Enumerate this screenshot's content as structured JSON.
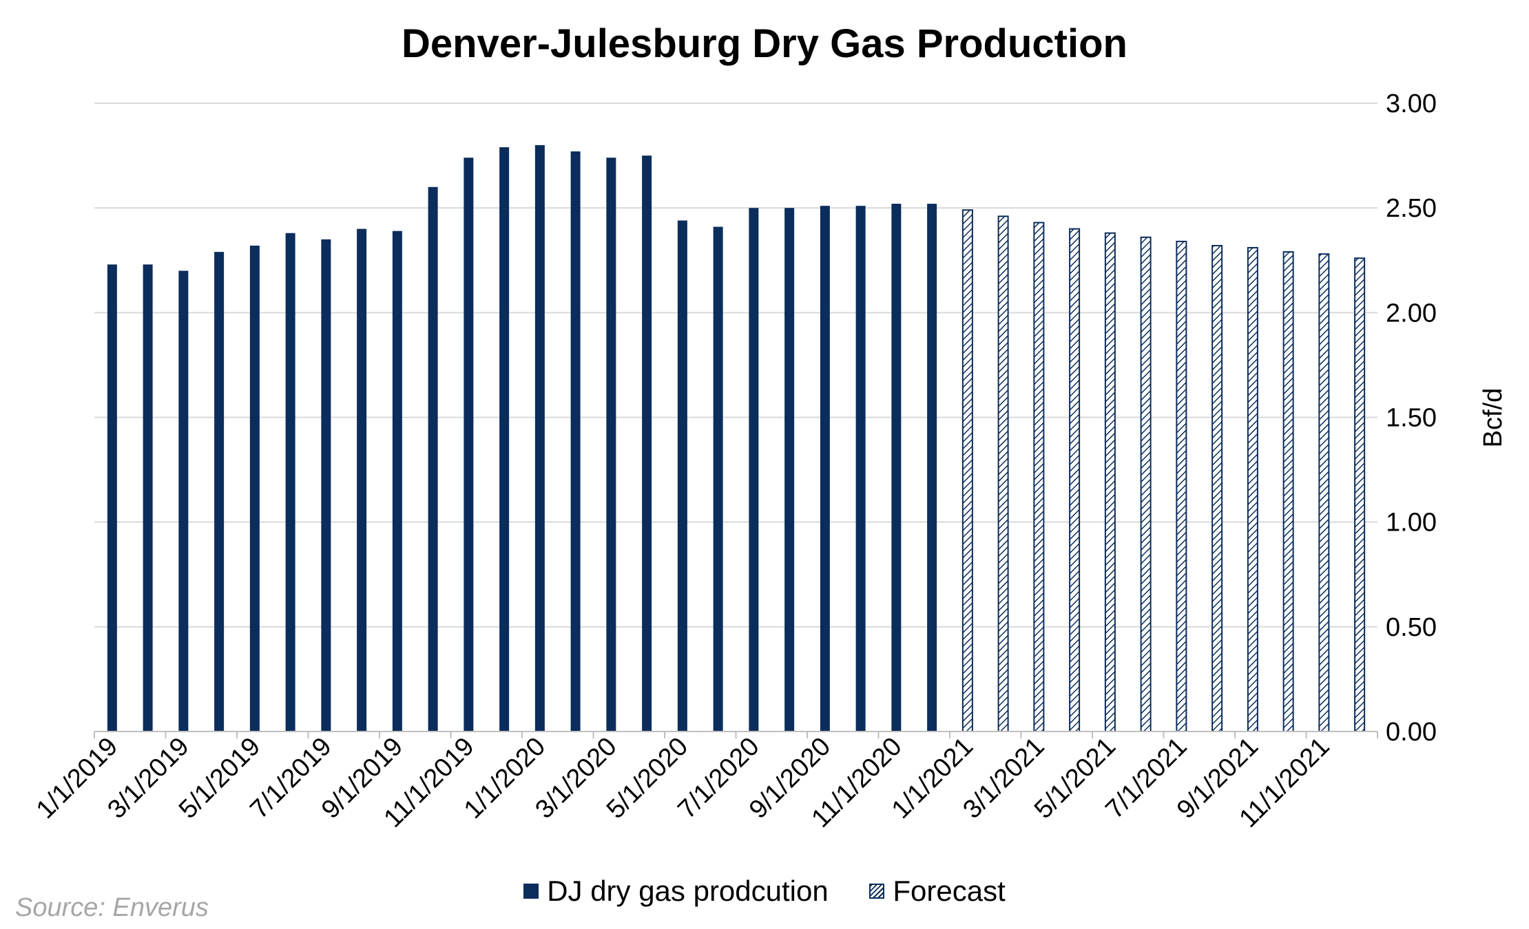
{
  "chart_data": {
    "type": "bar",
    "title": "Denver-Julesburg Dry Gas Production",
    "ylabel": "Bcf/d",
    "xlabel": "",
    "ylim": [
      0,
      3
    ],
    "y_ticks": [
      "0.00",
      "0.50",
      "1.00",
      "1.50",
      "2.00",
      "2.50",
      "3.00"
    ],
    "y_axis_position": "right",
    "grid": true,
    "legend_placement": "bottom",
    "x_tick_labels": [
      "1/1/2019",
      "3/1/2019",
      "5/1/2019",
      "7/1/2019",
      "9/1/2019",
      "11/1/2019",
      "1/1/2020",
      "3/1/2020",
      "5/1/2020",
      "7/1/2020",
      "9/1/2020",
      "11/1/2020",
      "1/1/2021",
      "3/1/2021",
      "5/1/2021",
      "7/1/2021",
      "9/1/2021",
      "11/1/2021"
    ],
    "categories": [
      "1/1/2019",
      "2/1/2019",
      "3/1/2019",
      "4/1/2019",
      "5/1/2019",
      "6/1/2019",
      "7/1/2019",
      "8/1/2019",
      "9/1/2019",
      "10/1/2019",
      "11/1/2019",
      "12/1/2019",
      "1/1/2020",
      "2/1/2020",
      "3/1/2020",
      "4/1/2020",
      "5/1/2020",
      "6/1/2020",
      "7/1/2020",
      "8/1/2020",
      "9/1/2020",
      "10/1/2020",
      "11/1/2020",
      "12/1/2020",
      "1/1/2021",
      "2/1/2021",
      "3/1/2021",
      "4/1/2021",
      "5/1/2021",
      "6/1/2021",
      "7/1/2021",
      "8/1/2021",
      "9/1/2021",
      "10/1/2021",
      "11/1/2021",
      "12/1/2021"
    ],
    "series": [
      {
        "name": "DJ dry gas prodcution",
        "style": "solid",
        "color": "#0b2d5c",
        "values": [
          2.23,
          2.23,
          2.2,
          2.29,
          2.32,
          2.38,
          2.35,
          2.4,
          2.39,
          2.6,
          2.74,
          2.79,
          2.8,
          2.77,
          2.74,
          2.75,
          2.44,
          2.41,
          2.5,
          2.5,
          2.51,
          2.51,
          2.52,
          2.52,
          null,
          null,
          null,
          null,
          null,
          null,
          null,
          null,
          null,
          null,
          null,
          null
        ]
      },
      {
        "name": "Forecast",
        "style": "hatched",
        "color": "#0b2d5c",
        "values": [
          null,
          null,
          null,
          null,
          null,
          null,
          null,
          null,
          null,
          null,
          null,
          null,
          null,
          null,
          null,
          null,
          null,
          null,
          null,
          null,
          null,
          null,
          null,
          null,
          2.49,
          2.46,
          2.43,
          2.4,
          2.38,
          2.36,
          2.34,
          2.32,
          2.31,
          2.29,
          2.28,
          2.26
        ]
      }
    ]
  },
  "source": "Source: Enverus"
}
